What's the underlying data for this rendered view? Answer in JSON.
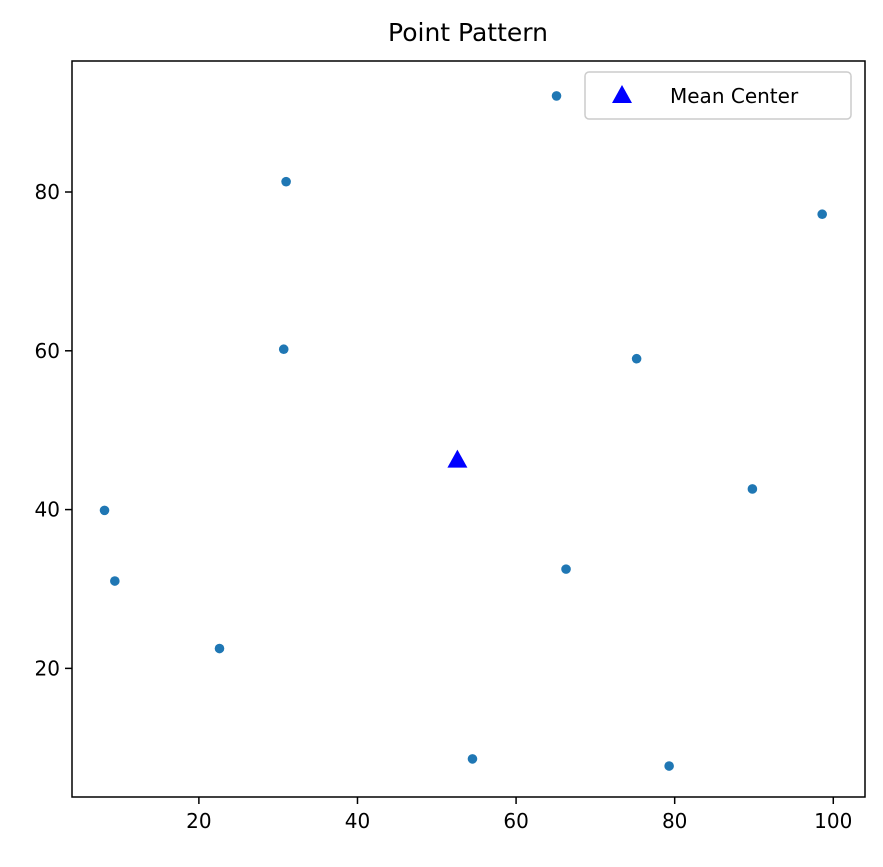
{
  "chart_data": {
    "type": "scatter",
    "title": "Point Pattern",
    "xlabel": "",
    "ylabel": "",
    "xlim": [
      4,
      104
    ],
    "ylim": [
      3.8,
      96.5
    ],
    "xticks": [
      20,
      40,
      60,
      80,
      100
    ],
    "yticks": [
      20,
      40,
      60,
      80
    ],
    "grid": false,
    "legend": {
      "placement": "top-right",
      "entries": [
        {
          "label": "Mean Center",
          "marker": "triangle",
          "color": "#0000ff"
        }
      ]
    },
    "series": [
      {
        "marker": "circle",
        "color": "#1f77b4",
        "points": [
          {
            "x": 65.1,
            "y": 92.1
          },
          {
            "x": 31.0,
            "y": 81.3
          },
          {
            "x": 98.6,
            "y": 77.2
          },
          {
            "x": 30.7,
            "y": 60.2
          },
          {
            "x": 75.2,
            "y": 59.0
          },
          {
            "x": 89.8,
            "y": 42.6
          },
          {
            "x": 8.1,
            "y": 39.9
          },
          {
            "x": 66.3,
            "y": 32.5
          },
          {
            "x": 9.4,
            "y": 31.0
          },
          {
            "x": 22.6,
            "y": 22.5
          },
          {
            "x": 54.5,
            "y": 8.6
          },
          {
            "x": 79.3,
            "y": 7.7
          }
        ]
      },
      {
        "name": "Mean Center",
        "marker": "triangle",
        "color": "#0000ff",
        "points": [
          {
            "x": 52.6,
            "y": 46.3
          }
        ]
      }
    ]
  }
}
